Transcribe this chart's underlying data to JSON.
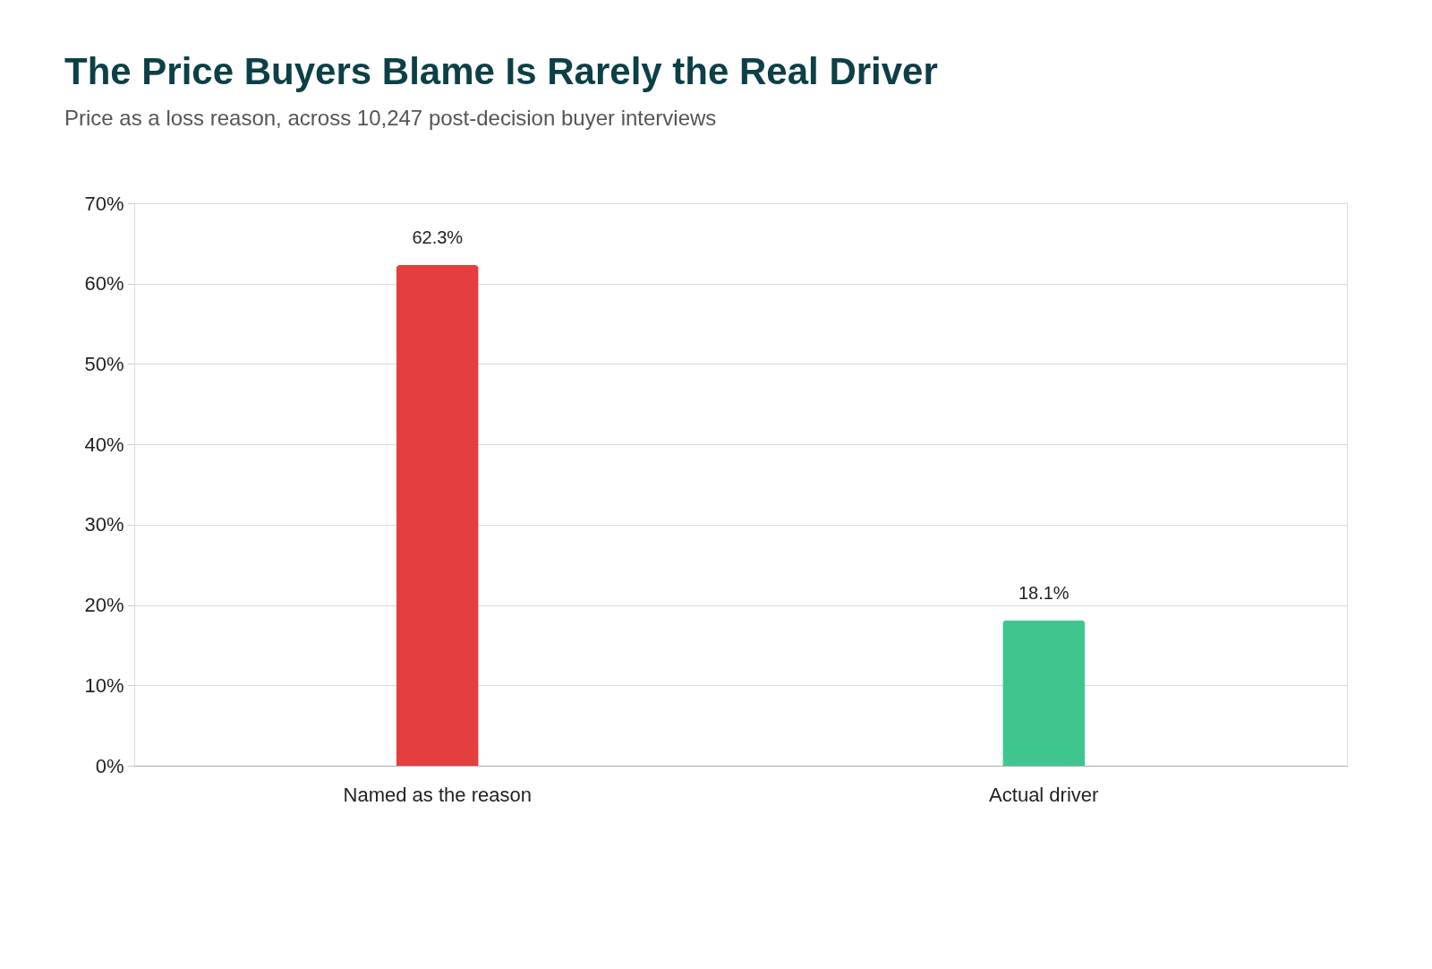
{
  "chart_data": {
    "type": "bar",
    "title": "The Price Buyers Blame Is Rarely the Real Driver",
    "subtitle": "Price as a loss reason, across 10,247 post-decision buyer interviews",
    "categories": [
      "Named as the reason",
      "Actual driver"
    ],
    "values": [
      62.3,
      18.1
    ],
    "colors": [
      "#e53e3e",
      "#3fc68f"
    ],
    "value_labels": [
      "62.3%",
      "18.1%"
    ],
    "ylim": [
      0,
      70
    ],
    "yticks": [
      {
        "value": 0,
        "label": "0%"
      },
      {
        "value": 10,
        "label": "10%"
      },
      {
        "value": 20,
        "label": "20%"
      },
      {
        "value": 30,
        "label": "30%"
      },
      {
        "value": 40,
        "label": "40%"
      },
      {
        "value": 50,
        "label": "50%"
      },
      {
        "value": 60,
        "label": "60%"
      },
      {
        "value": 70,
        "label": "70%"
      }
    ],
    "grid": "y"
  }
}
